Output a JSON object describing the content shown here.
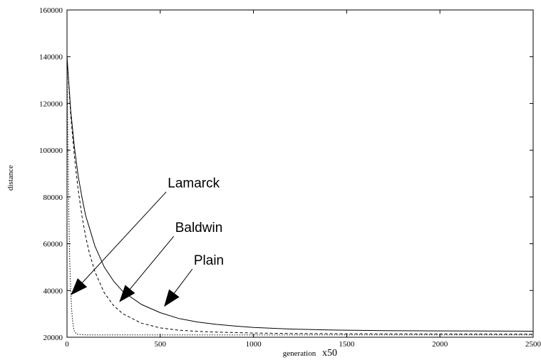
{
  "chart_data": {
    "type": "line",
    "xlabel": "generation",
    "xlabel_suffix": "x50",
    "ylabel": "distance",
    "xlim": [
      0,
      2500
    ],
    "ylim": [
      20000,
      160000
    ],
    "x_ticks": [
      {
        "value": 0,
        "label": "0"
      },
      {
        "value": 500,
        "label": "500"
      },
      {
        "value": 1000,
        "label": "1000"
      },
      {
        "value": 1500,
        "label": "1500"
      },
      {
        "value": 2000,
        "label": "2000"
      },
      {
        "value": 2500,
        "label": "2500"
      }
    ],
    "y_ticks": [
      {
        "value": 20000,
        "label": "20000"
      },
      {
        "value": 40000,
        "label": "40000"
      },
      {
        "value": 60000,
        "label": "60000"
      },
      {
        "value": 80000,
        "label": "80000"
      },
      {
        "value": 100000,
        "label": "100000"
      },
      {
        "value": 120000,
        "label": "120000"
      },
      {
        "value": 140000,
        "label": "140000"
      },
      {
        "value": 160000,
        "label": "160000"
      }
    ],
    "grid": false,
    "series": [
      {
        "name": "Lamarck",
        "style": "dotted",
        "color": "#000000",
        "x": [
          0,
          5,
          10,
          15,
          20,
          25,
          30,
          35,
          40,
          50,
          60,
          80,
          100,
          200,
          500,
          1000,
          1500,
          2000,
          2500
        ],
        "y": [
          140000,
          100000,
          72000,
          52000,
          40000,
          32000,
          27000,
          24000,
          22500,
          21500,
          21200,
          21100,
          21000,
          21000,
          21000,
          21000,
          21000,
          21000,
          21000
        ]
      },
      {
        "name": "Baldwin",
        "style": "dashed",
        "color": "#000000",
        "x": [
          0,
          20,
          40,
          60,
          80,
          100,
          120,
          150,
          200,
          250,
          300,
          400,
          500,
          600,
          700,
          800,
          1000,
          1200,
          1500,
          2000,
          2500
        ],
        "y": [
          140000,
          115000,
          97000,
          83000,
          72000,
          63000,
          56000,
          48000,
          39000,
          33500,
          30000,
          26000,
          24000,
          23000,
          22500,
          22200,
          21800,
          21600,
          21500,
          21400,
          21300
        ]
      },
      {
        "name": "Plain",
        "style": "solid",
        "color": "#000000",
        "x": [
          0,
          20,
          40,
          60,
          80,
          100,
          150,
          200,
          250,
          300,
          400,
          500,
          600,
          700,
          800,
          900,
          1000,
          1200,
          1400,
          1500,
          1700,
          2000,
          2500
        ],
        "y": [
          140000,
          117000,
          101000,
          89000,
          80000,
          72000,
          59000,
          50000,
          44000,
          39500,
          34000,
          30500,
          28000,
          26500,
          25500,
          24800,
          24200,
          23500,
          23100,
          23000,
          22800,
          22700,
          22600
        ]
      }
    ],
    "annotations": [
      {
        "text": "Lamarck",
        "target": {
          "x": 20,
          "y": 38000
        },
        "label_pos": {
          "x": 540,
          "y": 84000
        }
      },
      {
        "text": "Baldwin",
        "target": {
          "x": 280,
          "y": 35000
        },
        "label_pos": {
          "x": 580,
          "y": 65000
        }
      },
      {
        "text": "Plain",
        "target": {
          "x": 520,
          "y": 33000
        },
        "label_pos": {
          "x": 680,
          "y": 51000
        }
      }
    ]
  }
}
